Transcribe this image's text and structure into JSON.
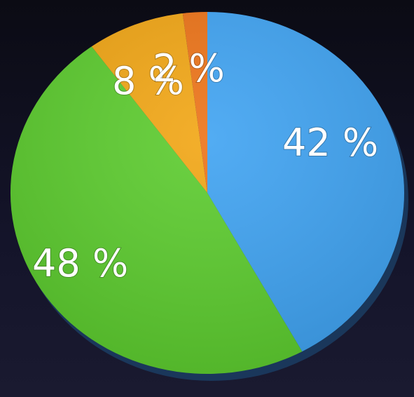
{
  "chart_data": {
    "type": "pie",
    "start_angle_deg": 0,
    "direction": "clockwise",
    "slices": [
      {
        "label": "42 %",
        "value": 42,
        "color": "#3fa3f2"
      },
      {
        "label": "48 %",
        "value": 48,
        "color": "#5ccc2e"
      },
      {
        "label": "8 %",
        "value": 8,
        "color": "#f2a614"
      },
      {
        "label": "2 %",
        "value": 2,
        "color": "#ed7317"
      }
    ]
  }
}
